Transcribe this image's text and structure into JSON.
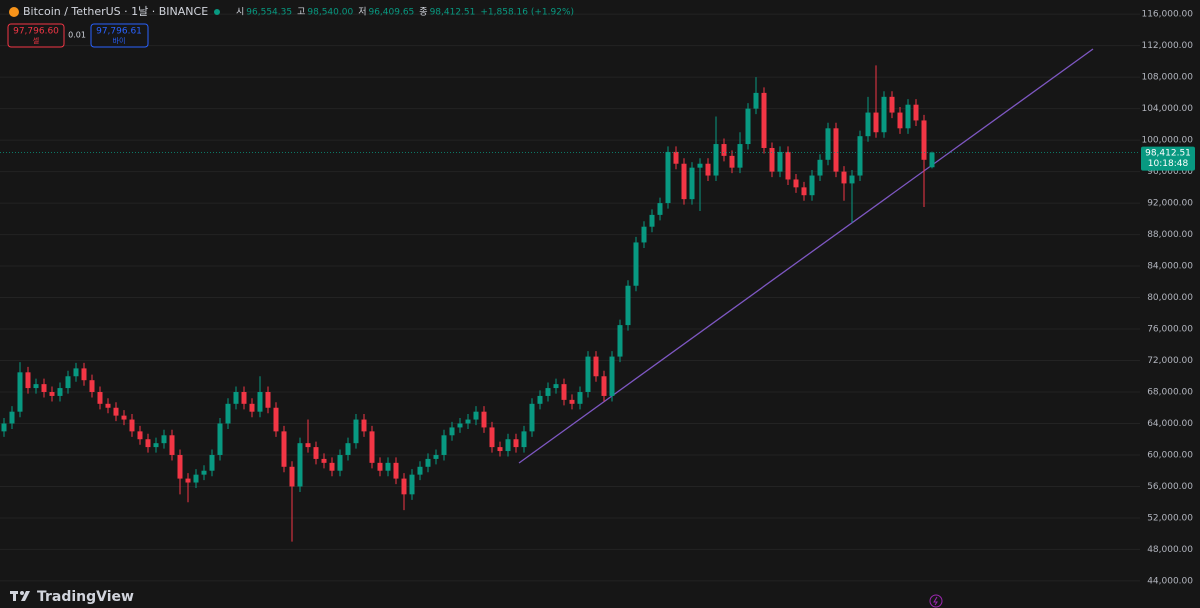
{
  "header": {
    "symbol": "Bitcoin / TetherUS · 1날 · BINANCE",
    "ohlc": [
      {
        "key": "시",
        "text": "96,554.35"
      },
      {
        "key": "고",
        "text": "98,540.00"
      },
      {
        "key": "저",
        "text": "96,409.65"
      },
      {
        "key": "종",
        "text": "98,412.51"
      }
    ],
    "change": "+1,858.16 (+1.92%)"
  },
  "trade": {
    "sell_price": "97,796.60",
    "sell_label": "셀",
    "spread": "0.01",
    "buy_price": "97,796.61",
    "buy_label": "바이"
  },
  "brand": "TradingView",
  "chart_data": {
    "type": "candlestick",
    "open": [
      63000,
      64000,
      65500,
      70500,
      68500,
      69000,
      68000,
      67500,
      68500,
      70000,
      71000,
      69500,
      68000,
      66500,
      66000,
      65000,
      64500,
      63000,
      62000,
      61000,
      61500,
      62500,
      60000,
      57000,
      56500,
      57500,
      58000,
      60000,
      64000,
      66500,
      68000,
      66500,
      65500,
      68000,
      66000,
      63000,
      58500,
      56000,
      61500,
      61000,
      59500,
      59000,
      58000,
      60000,
      61500,
      64500,
      63000,
      59000,
      58000,
      59000,
      57000,
      55000,
      57500,
      58500,
      59500,
      60000,
      62500,
      63500,
      64000,
      64500,
      65500,
      63500,
      61000,
      60500,
      62000,
      61000,
      63000,
      66500,
      67500,
      68500,
      69000,
      67000,
      66500,
      68000,
      72500,
      70000,
      67500,
      72500,
      76500,
      81500,
      87000,
      89000,
      90500,
      92000,
      98500,
      97000,
      92500,
      96500,
      97000,
      95500,
      99500,
      98000,
      96500,
      99500,
      104000,
      106000,
      99000,
      96000,
      98500,
      95000,
      94000,
      93000,
      95500,
      97500,
      101500,
      96000,
      94500,
      95500,
      100500,
      103500,
      101000,
      105500,
      103500,
      101500,
      104500,
      102500,
      96554.35
    ],
    "high": [
      64700,
      66200,
      71800,
      71200,
      69700,
      69700,
      68700,
      69200,
      70700,
      71700,
      71700,
      70200,
      68700,
      67200,
      66700,
      65700,
      65200,
      63700,
      62700,
      62200,
      63200,
      63200,
      60700,
      57700,
      58200,
      58700,
      60700,
      64700,
      67200,
      68700,
      68700,
      67200,
      70000,
      68700,
      66700,
      63700,
      59200,
      62200,
      64500,
      61700,
      60200,
      59700,
      60700,
      62200,
      65200,
      65200,
      63700,
      59700,
      59700,
      59700,
      57700,
      58200,
      59200,
      60200,
      60700,
      63200,
      64200,
      64700,
      65200,
      66200,
      66200,
      64200,
      61700,
      62700,
      62700,
      63700,
      67200,
      68200,
      69200,
      69700,
      69700,
      67700,
      68700,
      73200,
      73200,
      70700,
      73200,
      77200,
      82200,
      87700,
      89700,
      91200,
      92700,
      99200,
      99200,
      97700,
      97200,
      97700,
      97700,
      103000,
      100200,
      98700,
      101000,
      104700,
      108000,
      106700,
      99700,
      99200,
      99200,
      95700,
      94700,
      96200,
      98200,
      102200,
      102200,
      96700,
      96200,
      101200,
      105500,
      109500,
      106200,
      106200,
      104200,
      105200,
      105200,
      103200,
      98540
    ],
    "low": [
      62300,
      63300,
      64800,
      67800,
      67800,
      67300,
      66800,
      66800,
      67800,
      69300,
      68800,
      67300,
      65800,
      65300,
      64300,
      63800,
      62300,
      61300,
      60300,
      60300,
      60800,
      59300,
      55000,
      54000,
      55800,
      56800,
      57300,
      59300,
      63300,
      65800,
      65800,
      64800,
      64800,
      65300,
      62300,
      57800,
      49000,
      55300,
      60300,
      58800,
      58300,
      57300,
      57300,
      59300,
      60800,
      62300,
      58300,
      57300,
      57300,
      56300,
      53000,
      54300,
      56800,
      57800,
      58800,
      59300,
      61800,
      62800,
      63300,
      63800,
      62800,
      60300,
      59800,
      59800,
      60300,
      60300,
      62300,
      65800,
      66800,
      67800,
      66300,
      65800,
      65800,
      67300,
      69300,
      66800,
      66800,
      71800,
      75800,
      80800,
      86300,
      88300,
      89800,
      91300,
      96300,
      91800,
      91800,
      91000,
      94800,
      94800,
      97300,
      95800,
      95800,
      98800,
      103300,
      98300,
      95300,
      95300,
      94300,
      93300,
      92300,
      92300,
      94800,
      96800,
      95300,
      92300,
      89500,
      94800,
      99800,
      100300,
      100300,
      102800,
      100800,
      100800,
      101800,
      91500,
      96409.65
    ],
    "close": [
      64000,
      65500,
      70500,
      68500,
      69000,
      68000,
      67500,
      68500,
      70000,
      71000,
      69500,
      68000,
      66500,
      66000,
      65000,
      64500,
      63000,
      62000,
      61000,
      61500,
      62500,
      60000,
      57000,
      56500,
      57500,
      58000,
      60000,
      64000,
      66500,
      68000,
      66500,
      65500,
      68000,
      66000,
      63000,
      58500,
      56000,
      61500,
      61000,
      59500,
      59000,
      58000,
      60000,
      61500,
      64500,
      63000,
      59000,
      58000,
      59000,
      57000,
      55000,
      57500,
      58500,
      59500,
      60000,
      62500,
      63500,
      64000,
      64500,
      65500,
      63500,
      61000,
      60500,
      62000,
      61000,
      63000,
      66500,
      67500,
      68500,
      69000,
      67000,
      66500,
      68000,
      72500,
      70000,
      67500,
      72500,
      76500,
      81500,
      87000,
      89000,
      90500,
      92000,
      98500,
      97000,
      92500,
      96500,
      97000,
      95500,
      99500,
      98000,
      96500,
      99500,
      104000,
      106000,
      99000,
      96000,
      98500,
      95000,
      94000,
      93000,
      95500,
      97500,
      101500,
      96000,
      94500,
      95500,
      100500,
      103500,
      101000,
      105500,
      103500,
      101500,
      104500,
      102500,
      97500,
      98412.51
    ],
    "ylim": [
      40560,
      117800
    ],
    "yticks": [
      {
        "value": 44000,
        "label": "44,000.00"
      },
      {
        "value": 48000,
        "label": "48,000.00"
      },
      {
        "value": 52000,
        "label": "52,000.00"
      },
      {
        "value": 56000,
        "label": "56,000.00"
      },
      {
        "value": 60000,
        "label": "60,000.00"
      },
      {
        "value": 64000,
        "label": "64,000.00"
      },
      {
        "value": 68000,
        "label": "68,000.00"
      },
      {
        "value": 72000,
        "label": "72,000.00"
      },
      {
        "value": 76000,
        "label": "76,000.00"
      },
      {
        "value": 80000,
        "label": "80,000.00"
      },
      {
        "value": 84000,
        "label": "84,000.00"
      },
      {
        "value": 88000,
        "label": "88,000.00"
      },
      {
        "value": 92000,
        "label": "92,000.00"
      },
      {
        "value": 96000,
        "label": "96,000.00"
      },
      {
        "value": 100000,
        "label": "100,000.00"
      },
      {
        "value": 104000,
        "label": "104,000.00"
      },
      {
        "value": 108000,
        "label": "108,000.00"
      },
      {
        "value": 112000,
        "label": "112,000.00"
      },
      {
        "value": 116000,
        "label": "116,000.00"
      }
    ],
    "grid": true,
    "up_color": "#089981",
    "down_color": "#f23645",
    "last_price": {
      "value": 98412.51,
      "label": "98,412.51"
    },
    "countdown": "10:18:48"
  }
}
